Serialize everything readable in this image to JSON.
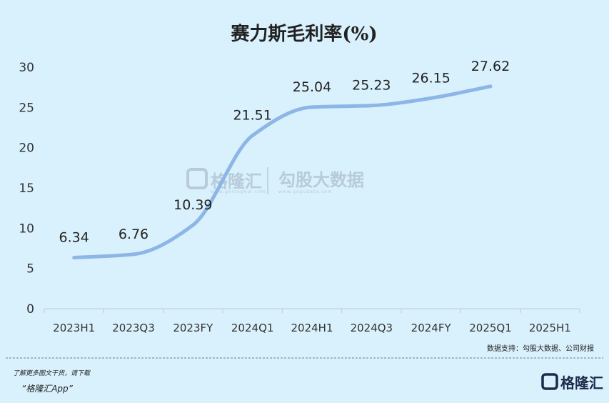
{
  "chart_data": {
    "type": "line",
    "title": "赛力斯毛利率(%)",
    "categories": [
      "2023H1",
      "2023Q3",
      "2023FY",
      "2024Q1",
      "2024H1",
      "2024Q3",
      "2024FY",
      "2025Q1",
      "2025H1"
    ],
    "series": [
      {
        "values": [
          6.34,
          6.76,
          10.39,
          21.51,
          25.04,
          25.23,
          26.15,
          27.62,
          null
        ]
      }
    ],
    "data_labels": [
      "6.34",
      "6.76",
      "10.39",
      "21.51",
      "25.04",
      "25.23",
      "26.15",
      "27.62"
    ],
    "yticks": [
      "0",
      "5",
      "10",
      "15",
      "20",
      "25",
      "30"
    ],
    "ylim": [
      0,
      30
    ],
    "line_color": "#8db6e6",
    "grid": false
  },
  "watermark": {
    "name": "格隆汇",
    "sub": "www.gelonghui.com",
    "name2": "勾股大数据",
    "sub2": "www.gogudata.com"
  },
  "source_note": "数据支持：勾股大数据、公司财报",
  "footer": {
    "line1": "了解更多图文干货，请下载",
    "line2": "“格隆汇App”",
    "brand": "格隆汇"
  }
}
